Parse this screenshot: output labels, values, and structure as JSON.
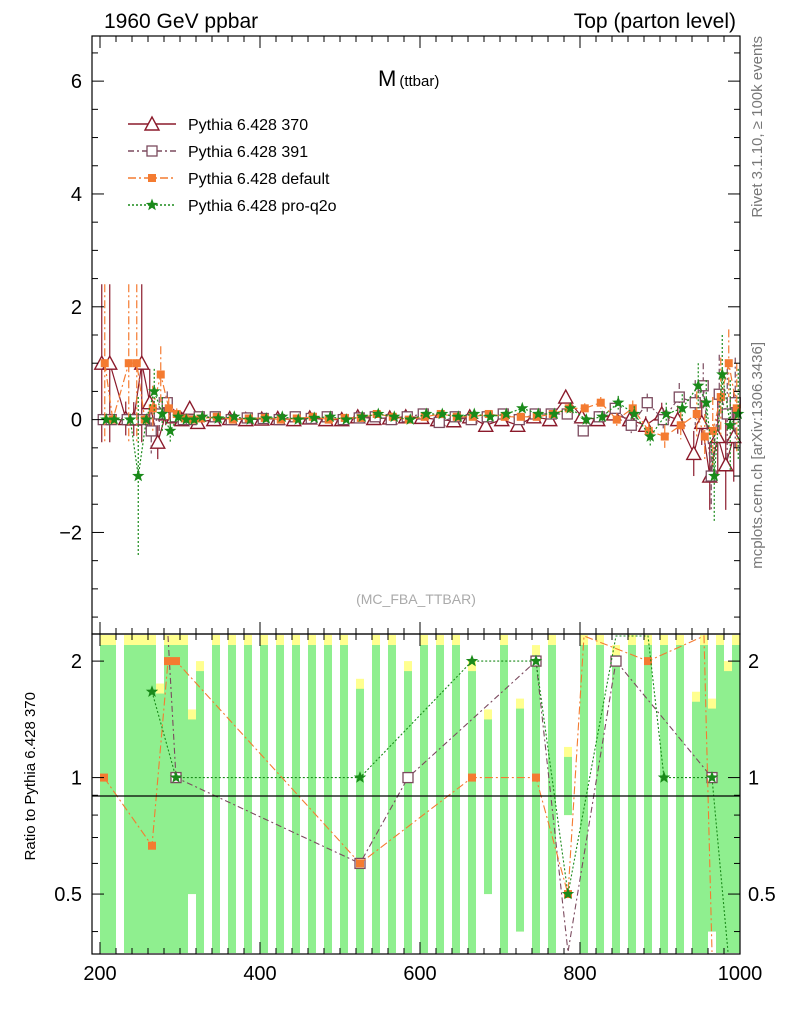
{
  "header": {
    "left": "1960 GeV ppbar",
    "right": "Top (parton level)"
  },
  "side_labels": {
    "rivet": "Rivet 3.1.10, ≥ 100k events",
    "mcplots": "mcplots.cern.ch [arXiv:1306.3436]"
  },
  "chart_data": {
    "type": "line",
    "title": "M",
    "title_sub": "(ttbar)",
    "analysis_label": "(MC_FBA_TTBAR)",
    "xlim": [
      190,
      1000
    ],
    "ylim": [
      -3.8,
      6.8
    ],
    "x_ticks": [
      200,
      400,
      600,
      800,
      1000
    ],
    "y_ticks": [
      -2,
      0,
      2,
      4,
      6
    ],
    "legend_position": "top-left",
    "x": [
      205,
      215,
      235,
      245,
      255,
      265,
      275,
      285,
      295,
      305,
      315,
      325,
      345,
      365,
      385,
      405,
      425,
      445,
      465,
      485,
      505,
      525,
      545,
      565,
      585,
      605,
      625,
      645,
      665,
      685,
      705,
      725,
      745,
      765,
      785,
      805,
      825,
      845,
      865,
      885,
      905,
      925,
      945,
      955,
      965,
      975,
      985,
      995
    ],
    "series": [
      {
        "name": "Pythia 6.428 370",
        "color": "#8b1a2b",
        "marker": "triangle",
        "dash": "",
        "values": [
          1.0,
          1.0,
          0.02,
          0.01,
          1.0,
          0.3,
          -0.4,
          0.1,
          0.05,
          0.0,
          0.2,
          -0.05,
          0.0,
          0.02,
          0.0,
          0.01,
          0.02,
          0.0,
          0.03,
          0.0,
          0.0,
          0.05,
          0.02,
          0.03,
          0.05,
          0.04,
          0.0,
          -0.02,
          0.05,
          -0.1,
          0.0,
          -0.1,
          0.05,
          0.0,
          0.4,
          0.05,
          0.0,
          0.1,
          0.0,
          -0.1,
          0.1,
          0.0,
          -0.6,
          -0.05,
          -1.0,
          -0.3,
          -0.8,
          -0.3
        ],
        "errors": [
          1.4,
          1.4,
          0.3,
          0.3,
          1.4,
          0.6,
          0.3,
          0.2,
          0.1,
          0.05,
          0.1,
          0.05,
          0.04,
          0.04,
          0.04,
          0.04,
          0.04,
          0.04,
          0.04,
          0.04,
          0.04,
          0.04,
          0.04,
          0.04,
          0.05,
          0.05,
          0.05,
          0.05,
          0.05,
          0.05,
          0.06,
          0.06,
          0.06,
          0.07,
          0.08,
          0.09,
          0.1,
          0.12,
          0.14,
          0.16,
          0.2,
          0.25,
          0.4,
          0.4,
          0.6,
          0.7,
          0.8,
          0.8
        ]
      },
      {
        "name": "Pythia 6.428 391",
        "color": "#7b4a5e",
        "marker": "square",
        "dash": "6,3,2,3",
        "values": [
          0.0,
          0.0,
          0.0,
          0.0,
          0.0,
          -0.2,
          0.1,
          0.3,
          0.05,
          0.0,
          0.0,
          0.05,
          0.05,
          0.0,
          0.03,
          0.02,
          0.0,
          0.05,
          0.02,
          0.05,
          0.0,
          0.03,
          0.05,
          0.0,
          0.05,
          0.1,
          -0.05,
          0.05,
          0.0,
          0.05,
          0.1,
          0.0,
          0.1,
          0.1,
          0.1,
          -0.2,
          0.05,
          0.2,
          -0.1,
          0.3,
          0.0,
          0.4,
          0.3,
          0.6,
          -1.0,
          0.45,
          0.1,
          0.3
        ],
        "errors": [
          0.0,
          0.0,
          0.0,
          0.0,
          0.0,
          0.4,
          0.3,
          0.2,
          0.1,
          0.05,
          0.05,
          0.05,
          0.04,
          0.04,
          0.04,
          0.04,
          0.04,
          0.04,
          0.04,
          0.04,
          0.04,
          0.04,
          0.04,
          0.04,
          0.05,
          0.05,
          0.05,
          0.05,
          0.05,
          0.05,
          0.06,
          0.06,
          0.06,
          0.07,
          0.08,
          0.09,
          0.1,
          0.12,
          0.14,
          0.16,
          0.2,
          0.25,
          0.4,
          0.4,
          0.6,
          0.7,
          0.8,
          0.8
        ]
      },
      {
        "name": "Pythia 6.428 default",
        "color": "#f47b31",
        "marker": "filled-square",
        "dash": "8,3,2,3",
        "values": [
          1.0,
          0.0,
          1.0,
          1.0,
          0.0,
          0.2,
          0.8,
          0.2,
          0.1,
          0.02,
          0.0,
          0.02,
          0.05,
          0.0,
          0.02,
          0.03,
          0.0,
          0.02,
          0.05,
          0.0,
          0.03,
          0.03,
          0.1,
          0.05,
          0.0,
          0.05,
          0.1,
          0.05,
          0.05,
          0.1,
          0.05,
          0.05,
          0.05,
          0.1,
          0.2,
          0.2,
          0.3,
          0.0,
          0.2,
          -0.2,
          -0.3,
          -0.1,
          0.1,
          -0.3,
          -0.2,
          0.4,
          1.0,
          0.2
        ],
        "errors": [
          1.4,
          0.0,
          1.4,
          1.4,
          0.0,
          0.4,
          0.5,
          0.2,
          0.1,
          0.05,
          0.05,
          0.05,
          0.04,
          0.04,
          0.04,
          0.04,
          0.04,
          0.04,
          0.04,
          0.04,
          0.04,
          0.04,
          0.04,
          0.04,
          0.05,
          0.05,
          0.05,
          0.05,
          0.05,
          0.05,
          0.06,
          0.06,
          0.06,
          0.07,
          0.08,
          0.09,
          0.1,
          0.12,
          0.14,
          0.16,
          0.2,
          0.25,
          0.4,
          0.4,
          0.6,
          0.7,
          0.6,
          0.8
        ]
      },
      {
        "name": "Pythia 6.428 pro-q2o",
        "color": "#1a8a1a",
        "marker": "star",
        "dash": "2,2",
        "values": [
          0.0,
          0.0,
          0.0,
          -1.0,
          0.0,
          0.5,
          0.1,
          -0.2,
          0.05,
          0.0,
          0.0,
          0.05,
          0.02,
          0.05,
          0.0,
          0.02,
          0.05,
          0.0,
          0.03,
          0.05,
          0.0,
          0.05,
          0.1,
          0.05,
          0.0,
          0.1,
          0.1,
          0.05,
          0.1,
          0.05,
          0.1,
          0.2,
          0.1,
          0.1,
          0.2,
          0.0,
          0.05,
          0.3,
          0.1,
          -0.3,
          0.1,
          0.2,
          0.6,
          0.3,
          -1.0,
          0.8,
          -0.1,
          0.1
        ],
        "errors": [
          0.0,
          0.0,
          0.0,
          1.4,
          0.0,
          0.4,
          0.3,
          0.2,
          0.1,
          0.05,
          0.05,
          0.05,
          0.04,
          0.04,
          0.04,
          0.04,
          0.04,
          0.04,
          0.04,
          0.04,
          0.04,
          0.04,
          0.04,
          0.04,
          0.05,
          0.05,
          0.05,
          0.05,
          0.05,
          0.05,
          0.06,
          0.06,
          0.06,
          0.07,
          0.08,
          0.09,
          0.1,
          0.12,
          0.14,
          0.16,
          0.2,
          0.25,
          0.4,
          0.4,
          0.8,
          0.7,
          0.8,
          0.8
        ]
      }
    ],
    "ratio": {
      "ylabel": "Ratio to Pythia 6.428 370",
      "ylim": [
        0.35,
        2.35
      ],
      "y_ticks": [
        0.5,
        1,
        2
      ],
      "reference_value": 1,
      "band_colors": {
        "inner": "#8fef8f",
        "outer": "#ffff8f"
      }
    }
  }
}
